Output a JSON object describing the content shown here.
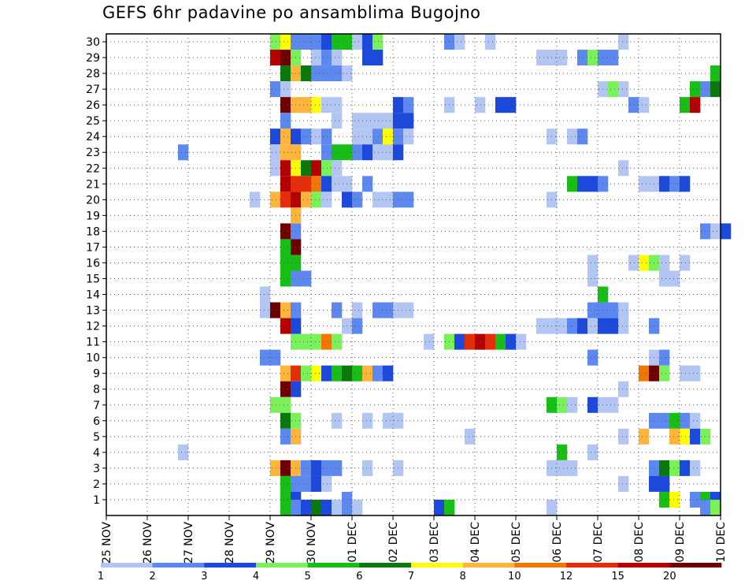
{
  "chart_data": {
    "type": "heatmap",
    "title": "GEFS 6hr padavine po ansamblima Bugojno",
    "x_labels": [
      "25 NOV",
      "26 NOV",
      "27 NOV",
      "28 NOV",
      "29 NOV",
      "30 NOV",
      "01 DEC",
      "02 DEC",
      "03 DEC",
      "04 DEC",
      "05 DEC",
      "06 DEC",
      "07 DEC",
      "08 DEC",
      "09 DEC",
      "10 DEC"
    ],
    "y_labels": [
      "1",
      "2",
      "3",
      "4",
      "5",
      "6",
      "7",
      "8",
      "9",
      "10",
      "11",
      "12",
      "13",
      "14",
      "15",
      "16",
      "17",
      "18",
      "19",
      "20",
      "21",
      "22",
      "23",
      "24",
      "25",
      "26",
      "27",
      "28",
      "29",
      "30"
    ],
    "steps_per_day": 4,
    "grid": true,
    "colorbar": {
      "labels": [
        "1",
        "2",
        "3",
        "4",
        "5",
        "6",
        "7",
        "8",
        "10",
        "12",
        "15",
        "20"
      ],
      "colors": [
        "#b3c6f3",
        "#5c88ef",
        "#1c48dc",
        "#7af05a",
        "#16be16",
        "#0a780a",
        "#ffff00",
        "#ffb43c",
        "#f07800",
        "#e62d0a",
        "#b40000",
        "#6e0000"
      ]
    },
    "cells": [
      [
        30,
        16,
        4
      ],
      [
        30,
        17,
        7
      ],
      [
        30,
        18,
        2
      ],
      [
        30,
        19,
        2
      ],
      [
        30,
        20,
        2
      ],
      [
        30,
        21,
        3
      ],
      [
        30,
        22,
        5
      ],
      [
        30,
        23,
        5
      ],
      [
        30,
        24,
        1
      ],
      [
        30,
        25,
        3
      ],
      [
        30,
        26,
        4
      ],
      [
        30,
        33,
        2
      ],
      [
        30,
        34,
        1
      ],
      [
        30,
        37,
        1
      ],
      [
        30,
        50,
        1
      ],
      [
        29,
        16,
        11
      ],
      [
        29,
        17,
        12
      ],
      [
        29,
        18,
        4
      ],
      [
        29,
        20,
        1
      ],
      [
        29,
        21,
        2
      ],
      [
        29,
        22,
        1
      ],
      [
        29,
        25,
        3
      ],
      [
        29,
        26,
        3
      ],
      [
        29,
        42,
        1
      ],
      [
        29,
        43,
        1
      ],
      [
        29,
        44,
        1
      ],
      [
        29,
        46,
        2
      ],
      [
        29,
        47,
        4
      ],
      [
        29,
        48,
        2
      ],
      [
        29,
        49,
        2
      ],
      [
        28,
        17,
        6
      ],
      [
        28,
        18,
        8
      ],
      [
        28,
        19,
        6
      ],
      [
        28,
        20,
        2
      ],
      [
        28,
        21,
        2
      ],
      [
        28,
        22,
        2
      ],
      [
        28,
        23,
        1
      ],
      [
        28,
        59,
        5
      ],
      [
        27,
        16,
        2
      ],
      [
        27,
        17,
        1
      ],
      [
        27,
        48,
        1
      ],
      [
        27,
        49,
        4
      ],
      [
        27,
        50,
        1
      ],
      [
        27,
        57,
        5
      ],
      [
        27,
        58,
        2
      ],
      [
        27,
        59,
        6
      ],
      [
        26,
        17,
        12
      ],
      [
        26,
        18,
        8
      ],
      [
        26,
        19,
        8
      ],
      [
        26,
        20,
        7
      ],
      [
        26,
        21,
        1
      ],
      [
        26,
        22,
        1
      ],
      [
        26,
        28,
        3
      ],
      [
        26,
        29,
        2
      ],
      [
        26,
        33,
        1
      ],
      [
        26,
        36,
        1
      ],
      [
        26,
        38,
        3
      ],
      [
        26,
        39,
        3
      ],
      [
        26,
        51,
        2
      ],
      [
        26,
        52,
        1
      ],
      [
        26,
        56,
        5
      ],
      [
        26,
        57,
        11
      ],
      [
        25,
        17,
        2
      ],
      [
        25,
        22,
        1
      ],
      [
        25,
        24,
        1
      ],
      [
        25,
        25,
        1
      ],
      [
        25,
        26,
        1
      ],
      [
        25,
        27,
        1
      ],
      [
        25,
        28,
        3
      ],
      [
        25,
        29,
        3
      ],
      [
        24,
        16,
        3
      ],
      [
        24,
        17,
        8
      ],
      [
        24,
        18,
        3
      ],
      [
        24,
        19,
        2
      ],
      [
        24,
        20,
        1
      ],
      [
        24,
        21,
        2
      ],
      [
        24,
        24,
        1
      ],
      [
        24,
        25,
        1
      ],
      [
        24,
        26,
        2
      ],
      [
        24,
        27,
        7
      ],
      [
        24,
        28,
        2
      ],
      [
        24,
        29,
        1
      ],
      [
        24,
        43,
        1
      ],
      [
        24,
        45,
        1
      ],
      [
        24,
        46,
        2
      ],
      [
        23,
        7,
        2
      ],
      [
        23,
        16,
        1
      ],
      [
        23,
        17,
        8
      ],
      [
        23,
        18,
        8
      ],
      [
        23,
        21,
        2
      ],
      [
        23,
        22,
        5
      ],
      [
        23,
        23,
        5
      ],
      [
        23,
        24,
        2
      ],
      [
        23,
        25,
        3
      ],
      [
        23,
        26,
        1
      ],
      [
        23,
        27,
        1
      ],
      [
        23,
        28,
        3
      ],
      [
        22,
        16,
        1
      ],
      [
        22,
        17,
        11
      ],
      [
        22,
        18,
        7
      ],
      [
        22,
        19,
        6
      ],
      [
        22,
        20,
        11
      ],
      [
        22,
        21,
        4
      ],
      [
        22,
        22,
        1
      ],
      [
        22,
        50,
        1
      ],
      [
        21,
        17,
        11
      ],
      [
        21,
        18,
        10
      ],
      [
        21,
        19,
        10
      ],
      [
        21,
        20,
        9
      ],
      [
        21,
        21,
        3
      ],
      [
        21,
        22,
        1
      ],
      [
        21,
        23,
        1
      ],
      [
        21,
        25,
        2
      ],
      [
        21,
        45,
        5
      ],
      [
        21,
        46,
        3
      ],
      [
        21,
        47,
        3
      ],
      [
        21,
        48,
        2
      ],
      [
        21,
        52,
        1
      ],
      [
        21,
        53,
        1
      ],
      [
        21,
        54,
        3
      ],
      [
        21,
        55,
        2
      ],
      [
        21,
        56,
        3
      ],
      [
        20,
        14,
        1
      ],
      [
        20,
        16,
        8
      ],
      [
        20,
        17,
        10
      ],
      [
        20,
        18,
        11
      ],
      [
        20,
        19,
        8
      ],
      [
        20,
        20,
        4
      ],
      [
        20,
        21,
        1
      ],
      [
        20,
        23,
        3
      ],
      [
        20,
        24,
        2
      ],
      [
        20,
        26,
        1
      ],
      [
        20,
        27,
        1
      ],
      [
        20,
        28,
        2
      ],
      [
        20,
        29,
        2
      ],
      [
        20,
        43,
        1
      ],
      [
        18,
        17,
        12
      ],
      [
        18,
        18,
        2
      ],
      [
        18,
        58,
        2
      ],
      [
        18,
        59,
        1
      ],
      [
        18,
        60,
        3
      ],
      [
        19,
        18,
        8
      ],
      [
        17,
        18,
        12
      ],
      [
        17,
        17,
        5
      ],
      [
        16,
        17,
        5
      ],
      [
        16,
        18,
        5
      ],
      [
        16,
        47,
        1
      ],
      [
        16,
        51,
        1
      ],
      [
        16,
        52,
        7
      ],
      [
        16,
        53,
        4
      ],
      [
        16,
        54,
        1
      ],
      [
        16,
        56,
        1
      ],
      [
        15,
        17,
        5
      ],
      [
        15,
        18,
        2
      ],
      [
        15,
        19,
        2
      ],
      [
        15,
        47,
        1
      ],
      [
        15,
        54,
        1
      ],
      [
        15,
        55,
        1
      ],
      [
        14,
        15,
        1
      ],
      [
        14,
        48,
        5
      ],
      [
        13,
        15,
        1
      ],
      [
        13,
        16,
        12
      ],
      [
        13,
        17,
        8
      ],
      [
        13,
        18,
        2
      ],
      [
        13,
        22,
        2
      ],
      [
        13,
        24,
        1
      ],
      [
        13,
        26,
        2
      ],
      [
        13,
        27,
        2
      ],
      [
        13,
        28,
        1
      ],
      [
        13,
        29,
        1
      ],
      [
        13,
        47,
        2
      ],
      [
        13,
        48,
        2
      ],
      [
        13,
        49,
        2
      ],
      [
        13,
        50,
        1
      ],
      [
        12,
        17,
        11
      ],
      [
        12,
        18,
        3
      ],
      [
        12,
        23,
        1
      ],
      [
        12,
        24,
        2
      ],
      [
        12,
        42,
        1
      ],
      [
        12,
        43,
        1
      ],
      [
        12,
        44,
        1
      ],
      [
        12,
        45,
        2
      ],
      [
        12,
        46,
        3
      ],
      [
        12,
        47,
        1
      ],
      [
        12,
        48,
        3
      ],
      [
        12,
        49,
        3
      ],
      [
        12,
        50,
        1
      ],
      [
        12,
        53,
        2
      ],
      [
        11,
        18,
        4
      ],
      [
        11,
        19,
        4
      ],
      [
        11,
        20,
        4
      ],
      [
        11,
        21,
        9
      ],
      [
        11,
        22,
        4
      ],
      [
        11,
        31,
        1
      ],
      [
        11,
        33,
        4
      ],
      [
        11,
        34,
        3
      ],
      [
        11,
        35,
        10
      ],
      [
        11,
        36,
        11
      ],
      [
        11,
        37,
        10
      ],
      [
        11,
        38,
        5
      ],
      [
        11,
        39,
        3
      ],
      [
        11,
        40,
        1
      ],
      [
        10,
        15,
        2
      ],
      [
        10,
        16,
        2
      ],
      [
        10,
        47,
        2
      ],
      [
        10,
        53,
        1
      ],
      [
        10,
        54,
        2
      ],
      [
        9,
        17,
        8
      ],
      [
        9,
        18,
        10
      ],
      [
        9,
        19,
        4
      ],
      [
        9,
        20,
        7
      ],
      [
        9,
        21,
        3
      ],
      [
        9,
        22,
        5
      ],
      [
        9,
        23,
        6
      ],
      [
        9,
        24,
        5
      ],
      [
        9,
        25,
        8
      ],
      [
        9,
        26,
        2
      ],
      [
        9,
        27,
        3
      ],
      [
        9,
        52,
        9
      ],
      [
        9,
        53,
        12
      ],
      [
        9,
        54,
        4
      ],
      [
        9,
        56,
        1
      ],
      [
        9,
        57,
        1
      ],
      [
        8,
        17,
        12
      ],
      [
        8,
        18,
        3
      ],
      [
        8,
        50,
        1
      ],
      [
        7,
        16,
        4
      ],
      [
        7,
        17,
        4
      ],
      [
        7,
        43,
        5
      ],
      [
        7,
        44,
        4
      ],
      [
        7,
        45,
        1
      ],
      [
        7,
        47,
        3
      ],
      [
        7,
        48,
        1
      ],
      [
        7,
        49,
        1
      ],
      [
        6,
        17,
        6
      ],
      [
        6,
        18,
        4
      ],
      [
        6,
        22,
        1
      ],
      [
        6,
        25,
        1
      ],
      [
        6,
        27,
        1
      ],
      [
        6,
        28,
        1
      ],
      [
        6,
        53,
        2
      ],
      [
        6,
        54,
        2
      ],
      [
        6,
        55,
        5
      ],
      [
        6,
        56,
        2
      ],
      [
        6,
        57,
        1
      ],
      [
        5,
        17,
        2
      ],
      [
        5,
        18,
        8
      ],
      [
        5,
        35,
        1
      ],
      [
        5,
        50,
        1
      ],
      [
        5,
        52,
        8
      ],
      [
        5,
        55,
        8
      ],
      [
        5,
        56,
        7
      ],
      [
        5,
        57,
        3
      ],
      [
        5,
        58,
        4
      ],
      [
        4,
        7,
        1
      ],
      [
        4,
        44,
        5
      ],
      [
        4,
        47,
        1
      ],
      [
        3,
        16,
        8
      ],
      [
        3,
        17,
        12
      ],
      [
        3,
        18,
        8
      ],
      [
        3,
        19,
        2
      ],
      [
        3,
        20,
        3
      ],
      [
        3,
        21,
        2
      ],
      [
        3,
        22,
        2
      ],
      [
        3,
        25,
        1
      ],
      [
        3,
        28,
        1
      ],
      [
        3,
        43,
        1
      ],
      [
        3,
        44,
        1
      ],
      [
        3,
        45,
        1
      ],
      [
        3,
        53,
        2
      ],
      [
        3,
        54,
        6
      ],
      [
        3,
        55,
        4
      ],
      [
        3,
        56,
        3
      ],
      [
        3,
        57,
        1
      ],
      [
        2,
        17,
        5
      ],
      [
        2,
        18,
        2
      ],
      [
        2,
        19,
        2
      ],
      [
        2,
        20,
        3
      ],
      [
        2,
        21,
        1
      ],
      [
        2,
        50,
        1
      ],
      [
        2,
        53,
        3
      ],
      [
        2,
        54,
        3
      ],
      [
        1,
        17,
        5
      ],
      [
        1,
        18,
        3
      ],
      [
        1,
        23,
        2
      ],
      [
        1,
        54,
        5
      ],
      [
        1,
        55,
        7
      ],
      [
        1,
        57,
        2
      ],
      [
        1,
        58,
        5
      ],
      [
        1,
        59,
        3
      ],
      [
        0.5,
        17,
        5
      ],
      [
        0.5,
        18,
        2
      ],
      [
        0.5,
        19,
        3
      ],
      [
        0.5,
        20,
        6
      ],
      [
        0.5,
        21,
        3
      ],
      [
        0.5,
        22,
        1
      ],
      [
        0.5,
        23,
        2
      ],
      [
        0.5,
        24,
        1
      ],
      [
        0.5,
        32,
        3
      ],
      [
        0.5,
        33,
        5
      ],
      [
        0.5,
        43,
        1
      ],
      [
        0.5,
        58,
        2
      ],
      [
        0.5,
        59,
        4
      ]
    ]
  }
}
